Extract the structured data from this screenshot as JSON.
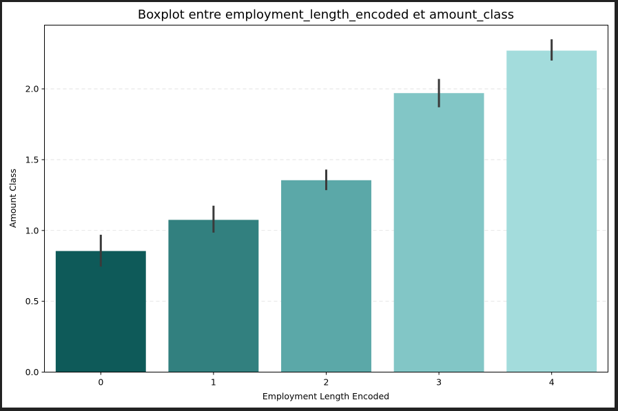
{
  "chart_data": {
    "type": "bar",
    "title": "Boxplot entre employment_length_encoded et amount_class",
    "xlabel": "Employment Length Encoded",
    "ylabel": "Amount Class",
    "categories": [
      "0",
      "1",
      "2",
      "3",
      "4"
    ],
    "values": [
      0.855,
      1.075,
      1.355,
      1.97,
      2.27
    ],
    "error_bars": [
      [
        0.745,
        0.97
      ],
      [
        0.985,
        1.175
      ],
      [
        1.285,
        1.43
      ],
      [
        1.87,
        2.07
      ],
      [
        2.2,
        2.35
      ]
    ],
    "ylim": [
      0,
      2.45
    ],
    "yticks": [
      "0.0",
      "0.5",
      "1.0",
      "1.5",
      "2.0"
    ],
    "grid": "horizontal dashed",
    "colors": [
      "#0e5a59",
      "#32807f",
      "#5ba8a8",
      "#82c6c6",
      "#a3dcdc"
    ],
    "error_bar_color": "#3a3a3a"
  }
}
